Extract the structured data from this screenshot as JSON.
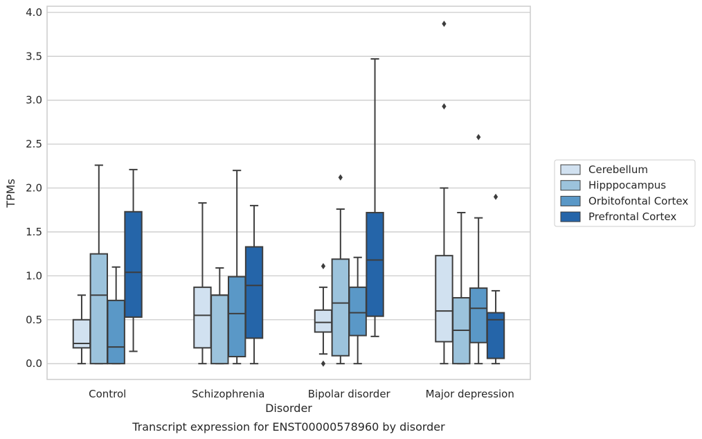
{
  "chart_data": {
    "type": "box",
    "caption": "Transcript expression for ENST00000578960 by disorder",
    "xlabel": "Disorder",
    "ylabel": "TPMs",
    "ylim": [
      -0.18,
      4.07
    ],
    "yticks": [
      0.0,
      0.5,
      1.0,
      1.5,
      2.0,
      2.5,
      3.0,
      3.5,
      4.0
    ],
    "ytick_labels": [
      "0.0",
      "0.5",
      "1.0",
      "1.5",
      "2.0",
      "2.5",
      "3.0",
      "3.5",
      "4.0"
    ],
    "grid": "horizontal",
    "legend_placement": "right",
    "categories": [
      "Control",
      "Schizophrenia",
      "Bipolar disorder",
      "Major depression"
    ],
    "series": [
      {
        "name": "Cerebellum",
        "color": "#d1e1f0",
        "boxes": [
          {
            "low": 0.0,
            "q1": 0.18,
            "median": 0.23,
            "q3": 0.5,
            "high": 0.78,
            "outliers": []
          },
          {
            "low": 0.0,
            "q1": 0.18,
            "median": 0.55,
            "q3": 0.87,
            "high": 1.83,
            "outliers": []
          },
          {
            "low": 0.11,
            "q1": 0.36,
            "median": 0.47,
            "q3": 0.61,
            "high": 0.87,
            "outliers": [
              0.0,
              1.11
            ]
          },
          {
            "low": 0.0,
            "q1": 0.25,
            "median": 0.6,
            "q3": 1.23,
            "high": 2.0,
            "outliers": [
              2.93,
              3.87
            ]
          }
        ]
      },
      {
        "name": "Hipppocampus",
        "color": "#9cc3dc",
        "boxes": [
          {
            "low": 0.0,
            "q1": 0.0,
            "median": 0.78,
            "q3": 1.25,
            "high": 2.26,
            "outliers": []
          },
          {
            "low": 0.0,
            "q1": 0.0,
            "median": 0.78,
            "q3": 0.78,
            "high": 1.09,
            "outliers": []
          },
          {
            "low": 0.0,
            "q1": 0.09,
            "median": 0.69,
            "q3": 1.19,
            "high": 1.76,
            "outliers": [
              2.12
            ]
          },
          {
            "low": 0.0,
            "q1": 0.0,
            "median": 0.38,
            "q3": 0.75,
            "high": 1.72,
            "outliers": []
          }
        ]
      },
      {
        "name": "Orbitofontal Cortex",
        "color": "#5a98c7",
        "boxes": [
          {
            "low": 0.0,
            "q1": 0.0,
            "median": 0.19,
            "q3": 0.72,
            "high": 1.1,
            "outliers": []
          },
          {
            "low": 0.0,
            "q1": 0.08,
            "median": 0.57,
            "q3": 0.99,
            "high": 2.2,
            "outliers": []
          },
          {
            "low": 0.0,
            "q1": 0.32,
            "median": 0.58,
            "q3": 0.87,
            "high": 1.21,
            "outliers": []
          },
          {
            "low": 0.0,
            "q1": 0.24,
            "median": 0.63,
            "q3": 0.86,
            "high": 1.66,
            "outliers": [
              2.58
            ]
          }
        ]
      },
      {
        "name": "Prefrontal Cortex",
        "color": "#2565a9",
        "boxes": [
          {
            "low": 0.14,
            "q1": 0.53,
            "median": 1.04,
            "q3": 1.73,
            "high": 2.21,
            "outliers": []
          },
          {
            "low": 0.0,
            "q1": 0.29,
            "median": 0.89,
            "q3": 1.33,
            "high": 1.8,
            "outliers": []
          },
          {
            "low": 0.31,
            "q1": 0.54,
            "median": 1.18,
            "q3": 1.72,
            "high": 3.47,
            "outliers": []
          },
          {
            "low": 0.0,
            "q1": 0.06,
            "median": 0.5,
            "q3": 0.58,
            "high": 0.83,
            "outliers": [
              1.9
            ]
          }
        ]
      }
    ]
  }
}
